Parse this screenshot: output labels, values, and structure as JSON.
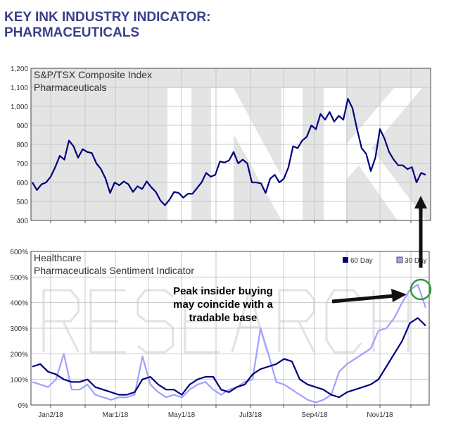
{
  "title_line1": "KEY INK INDUSTRY INDICATOR:",
  "title_line2": "PHARMACEUTICALS",
  "annotation": [
    "Peak insider buying",
    "may coincide with a",
    "tradable base"
  ],
  "watermark": [
    "INK",
    "RESEARCH"
  ],
  "colors": {
    "series60": "#000080",
    "series30": "#a0a0ff",
    "title": "#3b3f8c",
    "circle": "#2e9a3a"
  },
  "chart_data": [
    {
      "type": "line",
      "title": "S&P/TSX Composite Index",
      "subtitle": "Pharmaceuticals",
      "ylim": [
        400,
        1200
      ],
      "yticks": [
        "400",
        "500",
        "600",
        "700",
        "800",
        "900",
        "1,000",
        "1,100",
        "1,200"
      ],
      "series": [
        {
          "name": "Index",
          "values": [
            600,
            560,
            590,
            600,
            630,
            680,
            740,
            720,
            820,
            790,
            730,
            775,
            760,
            755,
            700,
            670,
            620,
            545,
            600,
            585,
            605,
            590,
            550,
            580,
            565,
            605,
            575,
            550,
            505,
            480,
            510,
            550,
            545,
            520,
            540,
            540,
            570,
            600,
            650,
            630,
            640,
            710,
            705,
            715,
            760,
            700,
            720,
            700,
            600,
            600,
            595,
            545,
            620,
            640,
            600,
            620,
            680,
            790,
            780,
            820,
            840,
            900,
            880,
            960,
            930,
            970,
            920,
            950,
            930,
            1040,
            990,
            880,
            780,
            750,
            660,
            730,
            880,
            830,
            760,
            720,
            690,
            690,
            670,
            680,
            600,
            650,
            640
          ]
        }
      ]
    },
    {
      "type": "line",
      "title": "Healthcare",
      "subtitle": "Pharmaceuticals Sentiment Indicator",
      "ylim": [
        0,
        600
      ],
      "yticks": [
        "0%",
        "100%",
        "200%",
        "300%",
        "400%",
        "500%",
        "600%"
      ],
      "xticks": [
        "Jan2/18",
        "Mar1/18",
        "May1/18",
        "Jul3/18",
        "Sep4/18",
        "Nov1/18"
      ],
      "legend": [
        "60 Day",
        "30 Day"
      ],
      "legend_position": "top-right",
      "series": [
        {
          "name": "60 Day",
          "values": [
            150,
            160,
            130,
            120,
            100,
            90,
            90,
            100,
            70,
            60,
            50,
            40,
            40,
            50,
            100,
            110,
            80,
            60,
            60,
            40,
            80,
            100,
            110,
            110,
            60,
            50,
            70,
            80,
            120,
            140,
            150,
            160,
            180,
            170,
            100,
            80,
            70,
            60,
            40,
            30,
            50,
            60,
            70,
            80,
            100,
            150,
            200,
            250,
            320,
            340,
            310
          ]
        },
        {
          "name": "30 Day",
          "values": [
            90,
            80,
            70,
            100,
            200,
            60,
            60,
            80,
            40,
            30,
            20,
            30,
            30,
            40,
            190,
            80,
            50,
            30,
            40,
            30,
            60,
            80,
            90,
            60,
            40,
            60,
            70,
            90,
            100,
            300,
            200,
            90,
            80,
            60,
            40,
            20,
            10,
            20,
            40,
            130,
            160,
            180,
            200,
            220,
            290,
            300,
            340,
            400,
            450,
            470,
            380
          ]
        }
      ]
    }
  ]
}
